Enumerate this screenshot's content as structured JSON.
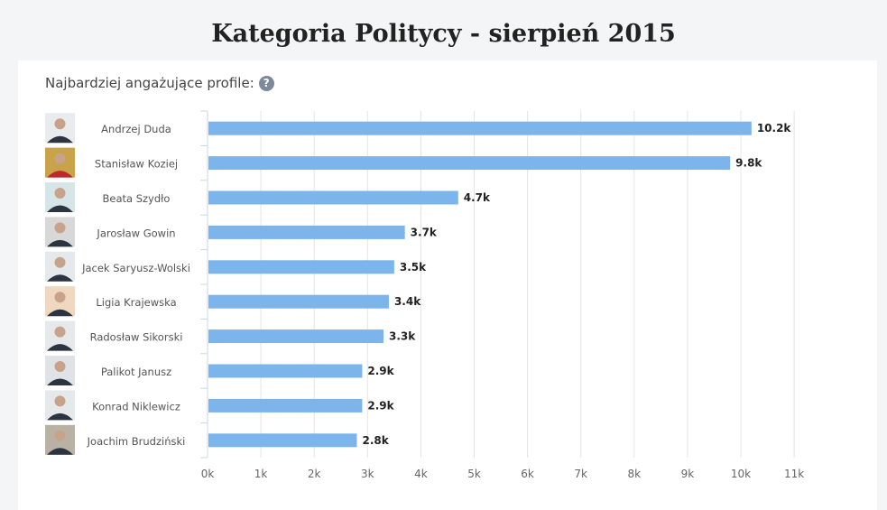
{
  "page_title": "Kategoria Politycy - sierpień 2015",
  "subtitle": "Najbardziej angażujące profile:",
  "help_icon": "question-circle-icon",
  "chart_data": {
    "type": "bar",
    "orientation": "horizontal",
    "categories": [
      "Andrzej Duda",
      "Stanisław Koziej",
      "Beata Szydło",
      "Jarosław Gowin",
      "Jacek Saryusz-Wolski",
      "Ligia Krajewska",
      "Radosław Sikorski",
      "Palikot Janusz",
      "Konrad Niklewicz",
      "Joachim Brudziński"
    ],
    "values": [
      10.2,
      9.8,
      4.7,
      3.7,
      3.5,
      3.4,
      3.3,
      2.9,
      2.9,
      2.8
    ],
    "data_labels": [
      "10.2k",
      "9.8k",
      "4.7k",
      "3.7k",
      "3.5k",
      "3.4k",
      "3.3k",
      "2.9k",
      "2.9k",
      "2.8k"
    ],
    "unit": "k",
    "xlim": [
      0,
      11
    ],
    "x_ticks": [
      "0k",
      "1k",
      "2k",
      "3k",
      "4k",
      "5k",
      "6k",
      "7k",
      "8k",
      "9k",
      "10k",
      "11k"
    ],
    "grid": true,
    "bar_color": "#7cb5ec",
    "avatars": true
  }
}
